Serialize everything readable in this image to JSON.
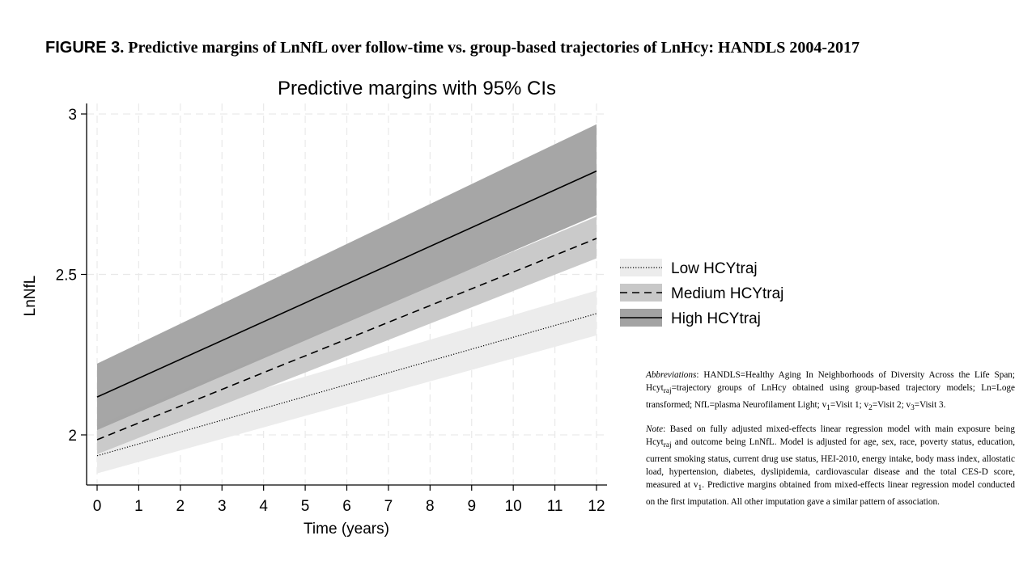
{
  "caption": {
    "label": "FIGURE 3",
    "text": ". Predictive margins of LnNfL over follow-time vs. group-based trajectories of LnHcy: HANDLS 2004-2017"
  },
  "notes": {
    "abbreviations_label": "Abbreviations",
    "abbreviations_pre": ": HANDLS=Healthy Aging In Neighborhoods of Diversity Across the Life Span; Hcyt",
    "abbreviations_sub": "raj",
    "abbreviations_post": "=trajectory groups of LnHcy obtained using group-based trajectory models; Ln=Loge transformed;  NfL=plasma Neurofilament Light;  v",
    "v1_sub": "1",
    "v1_text": "=Visit 1; v",
    "v2_sub": "2",
    "v2_text": "=Visit 2; v",
    "v3_sub": "3",
    "v3_text": "=Visit 3.",
    "note_label": "Note",
    "note_pre": ": Based on fully adjusted mixed-effects linear regression model with main exposure being Hcyt",
    "note_sub": "raj",
    "note_mid": " and outcome being LnNfL. Model is adjusted for age, sex, race, poverty status, education, current smoking status, current drug use status, HEI-2010, energy intake, body mass index, allostatic load, hypertension, diabetes, dyslipidemia, cardiovascular disease and the total CES-D score, measured at v",
    "note_v1_sub": "1",
    "note_post": ". Predictive margins obtained from mixed-effects linear regression model conducted on the first imputation. All other imputation gave a similar pattern of association."
  },
  "chart_data": {
    "type": "line",
    "title": "Predictive margins with 95% CIs",
    "xlabel": "Time (years)",
    "ylabel": "LnNfL",
    "xlim": [
      0,
      12
    ],
    "ylim": [
      1.85,
      3.03
    ],
    "x_ticks": [
      0,
      1,
      2,
      3,
      4,
      5,
      6,
      7,
      8,
      9,
      10,
      11,
      12
    ],
    "y_ticks": [
      2,
      2.5,
      3
    ],
    "y_tick_labels": [
      "2",
      "2.5",
      "3"
    ],
    "grid": true,
    "legend_position": "right",
    "series": [
      {
        "name": "Low HCYtraj",
        "x": [
          0,
          12
        ],
        "y": [
          1.935,
          2.378
        ],
        "ci_lower": [
          1.88,
          2.31
        ],
        "ci_upper": [
          1.99,
          2.45
        ],
        "line_style": "dotted",
        "band_color": "#ececec"
      },
      {
        "name": "Medium HCYtraj",
        "x": [
          0,
          12
        ],
        "y": [
          1.985,
          2.612
        ],
        "ci_lower": [
          1.94,
          2.55
        ],
        "ci_upper": [
          2.03,
          2.68
        ],
        "line_style": "dashed",
        "band_color": "#c8c8c8"
      },
      {
        "name": "High HCYtraj",
        "x": [
          0,
          12
        ],
        "y": [
          2.118,
          2.822
        ],
        "ci_lower": [
          2.015,
          2.685
        ],
        "ci_upper": [
          2.222,
          2.968
        ],
        "line_style": "solid",
        "band_color": "#a3a3a3"
      }
    ]
  }
}
